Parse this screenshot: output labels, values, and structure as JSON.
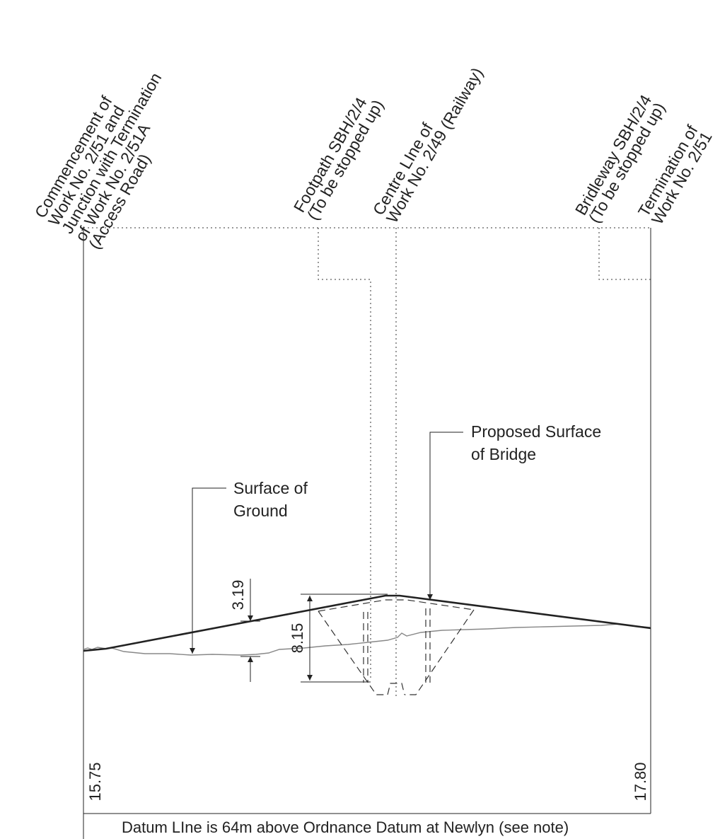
{
  "top_labels": {
    "commencement": {
      "lines": [
        "Commencement of",
        "Work No. 2/51 and",
        "Junction with Termination",
        "of Work No. 2/51A",
        "(Access Road)"
      ]
    },
    "footpath": {
      "lines": [
        "Footpath SBH/2/4",
        "(To be stopped up)"
      ]
    },
    "centre_line": {
      "lines": [
        "Centre LIne of",
        "Work No. 2/49 (Railway)"
      ]
    },
    "bridleway": {
      "lines": [
        "Bridleway SBH/2/4",
        "(To be stopped up)"
      ]
    },
    "termination": {
      "lines": [
        "Termination of",
        "Work No. 2/51"
      ]
    }
  },
  "callouts": {
    "surface_of_ground": {
      "line1": "Surface of",
      "line2": "Ground"
    },
    "proposed_surface": {
      "line1": "Proposed Surface",
      "line2": "of Bridge"
    }
  },
  "dimensions": {
    "height_difference": "3.19",
    "bridge_depth": "8.15"
  },
  "levels": {
    "left": "15.75",
    "right": "17.80"
  },
  "datum_note": "Datum LIne is 64m above Ordnance Datum at Newlyn (see note)",
  "colors": {
    "line": "#222222",
    "ground": "#888888",
    "leader": "#333333"
  }
}
